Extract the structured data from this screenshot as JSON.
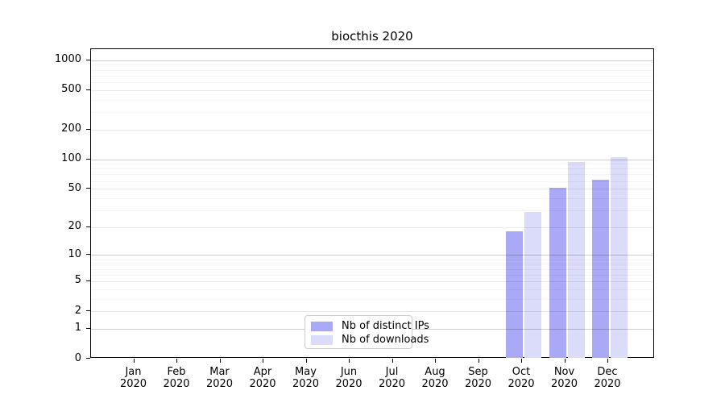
{
  "title": "biocthis 2020",
  "colors": {
    "ips_bar": "#a9a9f6",
    "downloads_bar": "#dbdbfa",
    "axis": "#000000",
    "grid_decade": "rgba(0,0,0,0.20)",
    "grid_major": "rgba(0,0,0,0.09)",
    "grid_minor": "rgba(0,0,0,0.045)",
    "legend_border": "#cccccc",
    "background": "#ffffff"
  },
  "legend": {
    "items": [
      {
        "label": "Nb of distinct IPs",
        "color": "#a9a9f6"
      },
      {
        "label": "Nb of downloads",
        "color": "#dbdbfa"
      }
    ]
  },
  "chart_data": {
    "type": "bar",
    "title": "biocthis 2020",
    "categories": [
      "Jan 2020",
      "Feb 2020",
      "Mar 2020",
      "Apr 2020",
      "May 2020",
      "Jun 2020",
      "Jul 2020",
      "Aug 2020",
      "Sep 2020",
      "Oct 2020",
      "Nov 2020",
      "Dec 2020"
    ],
    "series": [
      {
        "name": "Nb of distinct IPs",
        "color": "#a9a9f6",
        "values": [
          0,
          0,
          0,
          0,
          0,
          0,
          0,
          0,
          0,
          18,
          51,
          62
        ]
      },
      {
        "name": "Nb of downloads",
        "color": "#dbdbfa",
        "values": [
          0,
          0,
          0,
          0,
          0,
          0,
          0,
          0,
          0,
          29,
          94,
          105
        ]
      }
    ],
    "xlabel": "",
    "ylabel": "",
    "y_scale": "log10(1+x)",
    "y_ticks": [
      0,
      1,
      2,
      5,
      10,
      20,
      50,
      100,
      200,
      500,
      1000
    ],
    "y_minor_gridlines": [
      3,
      4,
      6,
      7,
      8,
      9,
      30,
      40,
      60,
      70,
      80,
      90,
      300,
      400,
      600,
      700,
      800,
      900
    ],
    "ylim": [
      0,
      1290
    ],
    "grid": true,
    "legend_position": "lower center"
  }
}
